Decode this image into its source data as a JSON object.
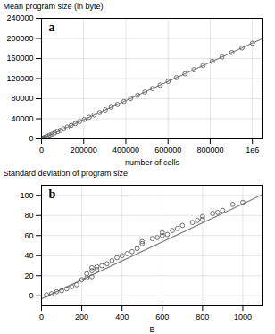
{
  "chart_data": [
    {
      "type": "scatter",
      "annotations": [
        "a"
      ],
      "xlabel": "number of cells",
      "ylabel": "Mean program size (in byte)",
      "xlim": [
        0,
        1050000
      ],
      "ylim": [
        0,
        240000
      ],
      "xticks": [
        0,
        200000,
        400000,
        600000,
        800000,
        {
          "value": 1000000,
          "label": "1e6"
        }
      ],
      "yticks": [
        0,
        40000,
        80000,
        120000,
        160000,
        200000,
        240000
      ],
      "grid": true,
      "series": [
        {
          "type": "line",
          "color": "#808080",
          "x": [
            0,
            1050000
          ],
          "values": [
            0,
            200025
          ]
        },
        {
          "type": "scatter",
          "color": "#606060",
          "marker": "circle",
          "x": [
            625,
            2500,
            5625,
            10000,
            15625,
            22500,
            30625,
            40000,
            50625,
            62500,
            75625,
            90000,
            105625,
            122500,
            140625,
            160000,
            180625,
            202500,
            225625,
            250000,
            275625,
            302500,
            330625,
            360000,
            390625,
            422500,
            455625,
            490000,
            525625,
            562500,
            600625,
            640000,
            680625,
            722500,
            765625,
            810000,
            855625,
            902500,
            950625,
            1000000
          ],
          "values": [
            119.0625,
            476.25,
            1071.5625,
            1905,
            2976.5625,
            4286.25,
            5834.0625,
            7620,
            9644.0625,
            11906.25,
            14406.5625,
            17145,
            20121.5625,
            23336.25,
            26789.0625,
            30480,
            34409.0625,
            38576.25,
            42981.5625,
            47625,
            52506.5625,
            57626.25,
            62984.0625,
            68580,
            74414.0625,
            80486.25,
            86796.5625,
            93345,
            100131.5625,
            107156.25,
            114419.0625,
            121920,
            129659.0625,
            137636.25,
            145851.5625,
            154305,
            162996.5625,
            171926.25,
            181094.0625,
            190500
          ]
        }
      ]
    },
    {
      "type": "scatter",
      "annotations": [
        "b"
      ],
      "xlabel": "B",
      "ylabel": "Standard deviation of program size",
      "xlim": [
        0,
        1100
      ],
      "ylim": [
        -10,
        110
      ],
      "xticks": [
        0,
        200,
        400,
        600,
        800,
        1000
      ],
      "yticks": [
        0,
        20,
        40,
        60,
        80,
        100
      ],
      "grid": true,
      "series": [
        {
          "type": "line",
          "color": "#808080",
          "x": [
            0,
            1100
          ],
          "values": [
            -3,
            101
          ]
        },
        {
          "type": "scatter",
          "color": "#606060",
          "marker": "circle",
          "x": [
            25,
            50,
            75,
            100,
            125,
            150,
            175,
            200,
            225,
            225,
            250,
            250,
            250,
            275,
            275,
            300,
            325,
            350,
            375,
            400,
            425,
            450,
            475,
            500,
            500,
            550,
            575,
            600,
            600,
            625,
            650,
            675,
            700,
            750,
            775,
            800,
            800,
            850,
            875,
            900,
            950,
            1000
          ],
          "values": [
            1,
            2,
            4,
            5,
            7,
            9,
            11,
            16,
            18,
            22,
            19,
            25,
            28,
            26,
            29,
            30,
            32,
            35,
            38,
            40,
            42,
            44,
            47,
            52,
            54,
            57,
            58,
            60,
            63,
            61,
            65,
            67,
            70,
            73,
            75,
            76,
            79,
            82,
            83,
            85,
            91,
            93
          ]
        }
      ]
    }
  ]
}
